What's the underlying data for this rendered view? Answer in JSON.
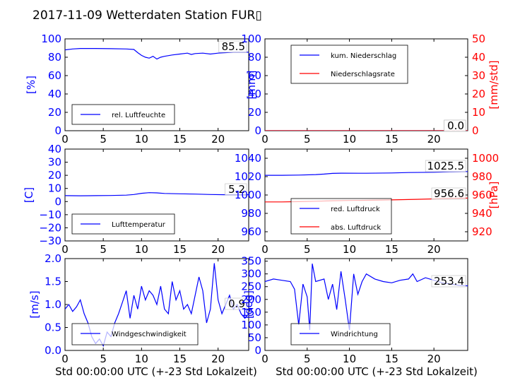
{
  "title": "2017-11-09 Wetterdaten Station FUR▯",
  "xlabel": "Std 00:00:00 UTC (+-23 Std Lokalzeit)",
  "colors": {
    "primary": "#0000ff",
    "secondary": "#ff0000",
    "black": "#000000"
  },
  "chart_data": [
    {
      "type": "line",
      "xlim": [
        0,
        24
      ],
      "x_ticks": [
        "0",
        "5",
        "10",
        "15",
        "20"
      ],
      "ylabel": "[%]",
      "ylim": [
        0,
        100
      ],
      "y_ticks": [
        "0",
        "20",
        "40",
        "60",
        "80",
        "100"
      ],
      "series": [
        {
          "name": "rel. Luftfeuchte",
          "color": "#0000ff",
          "points": [
            [
              0,
              88
            ],
            [
              1,
              89
            ],
            [
              2,
              89.5
            ],
            [
              4,
              89.5
            ],
            [
              6,
              89.3
            ],
            [
              8,
              89
            ],
            [
              9,
              88.5
            ],
            [
              9.5,
              85
            ],
            [
              10,
              82
            ],
            [
              10.5,
              80
            ],
            [
              11,
              79
            ],
            [
              11.5,
              81
            ],
            [
              12,
              78
            ],
            [
              12.5,
              80
            ],
            [
              13,
              81
            ],
            [
              14,
              82.5
            ],
            [
              15,
              83.5
            ],
            [
              16,
              84.5
            ],
            [
              16.5,
              83
            ],
            [
              17,
              84
            ],
            [
              18,
              84.5
            ],
            [
              19,
              83.5
            ],
            [
              20,
              84.5
            ],
            [
              21,
              85
            ],
            [
              22,
              85.5
            ],
            [
              23,
              85.5
            ],
            [
              24,
              85.5
            ]
          ]
        }
      ],
      "annotation": "85.5"
    },
    {
      "type": "line",
      "xlim": [
        0,
        24
      ],
      "x_ticks": [
        "0",
        "5",
        "10",
        "15",
        "20"
      ],
      "ylabel": "[mm]",
      "ylim": [
        0,
        100
      ],
      "y_ticks": [
        "0",
        "20",
        "40",
        "60",
        "80",
        "100"
      ],
      "y2label": "[mm/std]",
      "y2lim": [
        0,
        50
      ],
      "y2_ticks": [
        "0",
        "10",
        "20",
        "30",
        "40",
        "50"
      ],
      "series": [
        {
          "name": "kum. Niederschlag",
          "color": "#0000ff",
          "points": [
            [
              0,
              0
            ],
            [
              24,
              0
            ]
          ]
        },
        {
          "name": "Niederschlagsrate",
          "color": "#ff0000",
          "axis": "right",
          "points": [
            [
              0,
              0
            ],
            [
              24,
              0
            ]
          ]
        }
      ],
      "annotations": [
        "0.0",
        "0.0"
      ]
    },
    {
      "type": "line",
      "xlim": [
        0,
        24
      ],
      "x_ticks": [
        "0",
        "5",
        "10",
        "15",
        "20"
      ],
      "ylabel": "[C]",
      "ylim": [
        -30,
        40
      ],
      "y_ticks": [
        "−30",
        "−20",
        "−10",
        "0",
        "10",
        "20",
        "30",
        "40"
      ],
      "series": [
        {
          "name": "Lufttemperatur",
          "color": "#0000ff",
          "points": [
            [
              0,
              4.5
            ],
            [
              2,
              4.4
            ],
            [
              4,
              4.5
            ],
            [
              6,
              4.6
            ],
            [
              8,
              4.9
            ],
            [
              9,
              5.4
            ],
            [
              10,
              6.3
            ],
            [
              11,
              6.8
            ],
            [
              12,
              6.6
            ],
            [
              13,
              6.2
            ],
            [
              15,
              5.9
            ],
            [
              17,
              5.7
            ],
            [
              19,
              5.4
            ],
            [
              21,
              5.2
            ],
            [
              24,
              5.2
            ]
          ]
        }
      ],
      "annotation": "5.2"
    },
    {
      "type": "line",
      "xlim": [
        0,
        24
      ],
      "x_ticks": [
        "0",
        "5",
        "10",
        "15",
        "20"
      ],
      "ylabel": "",
      "ylim": [
        950,
        1050
      ],
      "y_ticks": [
        "960",
        "980",
        "1000",
        "1020",
        "1040"
      ],
      "y2label": "[hPa]",
      "y2lim": [
        910,
        1010
      ],
      "y2_ticks": [
        "920",
        "940",
        "960",
        "980",
        "1000"
      ],
      "series": [
        {
          "name": "red. Luftdruck",
          "color": "#0000ff",
          "points": [
            [
              0,
              1021.5
            ],
            [
              2,
              1021.5
            ],
            [
              4,
              1021.7
            ],
            [
              6,
              1022.2
            ],
            [
              7,
              1022.8
            ],
            [
              8,
              1023.5
            ],
            [
              9,
              1023.8
            ],
            [
              12,
              1023.7
            ],
            [
              15,
              1024.0
            ],
            [
              17,
              1024.5
            ],
            [
              20,
              1024.8
            ],
            [
              22,
              1025.3
            ],
            [
              24,
              1025.5
            ]
          ]
        },
        {
          "name": "abs. Luftdruck",
          "color": "#ff0000",
          "axis": "right",
          "points": [
            [
              0,
              952.5
            ],
            [
              2,
              952.5
            ],
            [
              4,
              952.8
            ],
            [
              6,
              953.2
            ],
            [
              8,
              953.8
            ],
            [
              10,
              954.1
            ],
            [
              12,
              954.2
            ],
            [
              14,
              954.5
            ],
            [
              16,
              954.9
            ],
            [
              18,
              955.3
            ],
            [
              20,
              955.8
            ],
            [
              22,
              956.3
            ],
            [
              24,
              956.6
            ]
          ]
        }
      ],
      "annotations": [
        "1025.5",
        "956.6"
      ]
    },
    {
      "type": "line",
      "xlim": [
        0,
        24
      ],
      "x_ticks": [
        "0",
        "5",
        "10",
        "15",
        "20"
      ],
      "ylabel": "[m/s]",
      "ylim": [
        0,
        2
      ],
      "y_ticks": [
        "0.0",
        "0.5",
        "1.0",
        "1.5",
        "2.0"
      ],
      "series": [
        {
          "name": "Windgeschwindigkeit",
          "color": "#0000ff",
          "points": [
            [
              0,
              0.9
            ],
            [
              0.5,
              1.0
            ],
            [
              1,
              0.85
            ],
            [
              1.5,
              0.95
            ],
            [
              2,
              1.1
            ],
            [
              2.5,
              0.8
            ],
            [
              3,
              0.6
            ],
            [
              3.5,
              0.3
            ],
            [
              4,
              0.15
            ],
            [
              4.5,
              0.25
            ],
            [
              5,
              0.1
            ],
            [
              5.5,
              0.4
            ],
            [
              6,
              0.3
            ],
            [
              6.5,
              0.6
            ],
            [
              7,
              0.8
            ],
            [
              7.5,
              1.05
            ],
            [
              8,
              1.3
            ],
            [
              8.5,
              0.7
            ],
            [
              9,
              1.2
            ],
            [
              9.5,
              0.9
            ],
            [
              10,
              1.4
            ],
            [
              10.5,
              1.1
            ],
            [
              11,
              1.3
            ],
            [
              11.5,
              1.2
            ],
            [
              12,
              1.0
            ],
            [
              12.5,
              1.4
            ],
            [
              13,
              0.9
            ],
            [
              13.5,
              0.8
            ],
            [
              14,
              1.5
            ],
            [
              14.5,
              1.1
            ],
            [
              15,
              1.3
            ],
            [
              15.5,
              0.9
            ],
            [
              16,
              1.0
            ],
            [
              16.5,
              0.8
            ],
            [
              17,
              1.2
            ],
            [
              17.5,
              1.6
            ],
            [
              18,
              1.3
            ],
            [
              18.5,
              0.6
            ],
            [
              19,
              0.9
            ],
            [
              19.5,
              1.9
            ],
            [
              20,
              1.1
            ],
            [
              20.5,
              0.8
            ],
            [
              21,
              1.0
            ],
            [
              21.5,
              1.2
            ],
            [
              22,
              0.9
            ],
            [
              22.5,
              1.0
            ],
            [
              23,
              0.8
            ],
            [
              23.5,
              0.7
            ],
            [
              24,
              0.8
            ]
          ]
        }
      ],
      "annotation": "0.9"
    },
    {
      "type": "line",
      "xlim": [
        0,
        24
      ],
      "x_ticks": [
        "0",
        "5",
        "10",
        "15",
        "20"
      ],
      "ylabel": "[deg]",
      "ylim": [
        0,
        360
      ],
      "y_ticks": [
        "0",
        "50",
        "100",
        "150",
        "200",
        "250",
        "300",
        "350"
      ],
      "series": [
        {
          "name": "Windrichtung",
          "color": "#0000ff",
          "points": [
            [
              0,
              270
            ],
            [
              1,
              280
            ],
            [
              2,
              275
            ],
            [
              3,
              270
            ],
            [
              3.5,
              240
            ],
            [
              4,
              100
            ],
            [
              4.5,
              260
            ],
            [
              5,
              210
            ],
            [
              5.3,
              80
            ],
            [
              5.6,
              340
            ],
            [
              6,
              270
            ],
            [
              7,
              280
            ],
            [
              7.5,
              200
            ],
            [
              8,
              260
            ],
            [
              8.5,
              160
            ],
            [
              9,
              310
            ],
            [
              9.5,
              200
            ],
            [
              10,
              80
            ],
            [
              10.5,
              300
            ],
            [
              11,
              220
            ],
            [
              11.5,
              270
            ],
            [
              12,
              300
            ],
            [
              13,
              280
            ],
            [
              14,
              270
            ],
            [
              15,
              265
            ],
            [
              16,
              275
            ],
            [
              17,
              280
            ],
            [
              17.5,
              300
            ],
            [
              18,
              270
            ],
            [
              19,
              285
            ],
            [
              20,
              275
            ],
            [
              21,
              265
            ],
            [
              22,
              260
            ],
            [
              23,
              255
            ],
            [
              24,
              253
            ]
          ]
        }
      ],
      "annotation": "253.4"
    }
  ]
}
